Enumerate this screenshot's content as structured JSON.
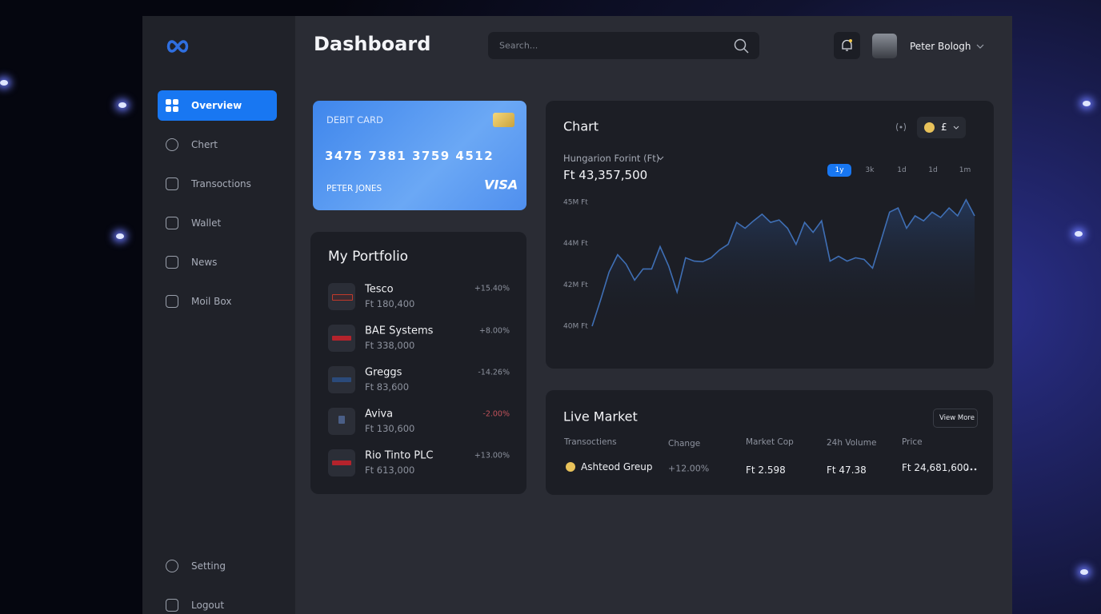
{
  "sidebar": {
    "menu": [
      "Overview",
      "Chert",
      "Transoctions",
      "Wallet",
      "News",
      "Moil Box"
    ],
    "bottom": [
      "Setting",
      "Logout"
    ]
  },
  "header": {
    "title": "Dashboard",
    "search_placeholder": "Search...",
    "user": "Peter Bologh"
  },
  "card": {
    "label": "DEBIT CARD",
    "number": "3475 7381 3759 4512",
    "holder": "PETER JONES",
    "brand": "VISA"
  },
  "portfolio": {
    "title": "My Portfolio",
    "items": [
      {
        "name": "Tesco",
        "value": "Ft 180,400",
        "change": "+15.40%"
      },
      {
        "name": "BAE Systems",
        "value": "Ft 338,000",
        "change": "+8.00%"
      },
      {
        "name": "Greggs",
        "value": "Ft 83,600",
        "change": "-14.26%"
      },
      {
        "name": "Aviva",
        "value": "Ft 130,600",
        "change": "-2.00%"
      },
      {
        "name": "Rio Tinto PLC",
        "value": "Ft 613,000",
        "change": "+13.00%"
      }
    ]
  },
  "chart_panel": {
    "title": "Chart",
    "currency": "£",
    "currency_name": "Hungarion Forint (Ft)",
    "amount": "Ft 43,357,500",
    "ranges": [
      "1y",
      "3k",
      "1d",
      "1d",
      "1m"
    ]
  },
  "chart_data": {
    "type": "line",
    "color": "#3f6fb5",
    "ylim": [
      40,
      45.2
    ],
    "yticks": [
      {
        "value": 40,
        "label": "40M Ft"
      },
      {
        "value": 42,
        "label": "42M Ft"
      },
      {
        "value": 44,
        "label": "44M Ft"
      },
      {
        "value": 45,
        "label": "45M Ft"
      }
    ],
    "values": [
      40.0,
      41.27,
      42.62,
      43.46,
      43.0,
      42.23,
      42.77,
      42.77,
      43.85,
      42.92,
      41.65,
      43.31,
      43.15,
      43.12,
      43.31,
      43.69,
      43.96,
      44.51,
      44.37,
      44.55,
      44.71,
      44.51,
      44.57,
      44.37,
      43.96,
      44.51,
      44.27,
      44.55,
      43.15,
      43.38,
      43.15,
      43.31,
      43.23,
      42.81,
      44.08,
      44.76,
      44.86,
      44.37,
      44.67,
      44.55,
      44.76,
      44.63,
      44.86,
      44.67,
      45.06,
      44.67
    ]
  },
  "live_market": {
    "title": "Live Market",
    "button": "View More",
    "columns": [
      "Transoctiens",
      "Change",
      "Market Cop",
      "24h Volume",
      "Price"
    ],
    "rows": [
      [
        "Ashteod Greup",
        "+12.00%",
        "Ft 2.598",
        "Ft 47.38",
        "Ft 24,681,600"
      ]
    ]
  }
}
